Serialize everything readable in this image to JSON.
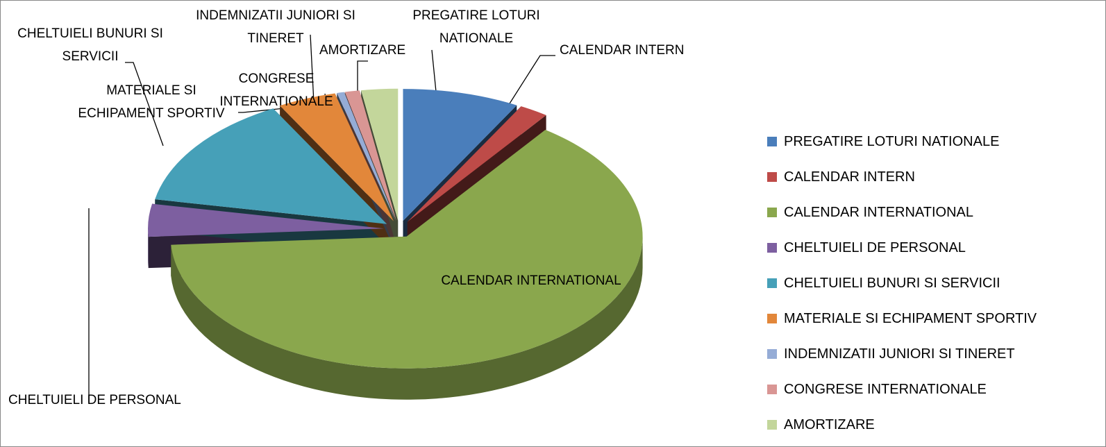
{
  "chart_data": {
    "type": "pie",
    "categories": [
      "PREGATIRE LOTURI NATIONALE",
      "CALENDAR INTERN",
      "CALENDAR INTERNATIONAL",
      "CHELTUIELI DE PERSONAL",
      "CHELTUIELI BUNURI SI SERVICII",
      "MATERIALE SI ECHIPAMENT SPORTIV",
      "INDEMNIZATII JUNIORI SI TINERET",
      "CONGRESE INTERNATIONALE",
      "AMORTIZARE"
    ],
    "values": [
      8,
      2,
      64,
      4,
      14,
      4,
      0.5,
      1,
      2.5
    ],
    "colors": [
      "#4a7ebb",
      "#be4b48",
      "#8aa74d",
      "#7d5fa0",
      "#46a0b8",
      "#e2873a",
      "#95acd6",
      "#d99694",
      "#c3d69b"
    ],
    "legend": "right"
  }
}
